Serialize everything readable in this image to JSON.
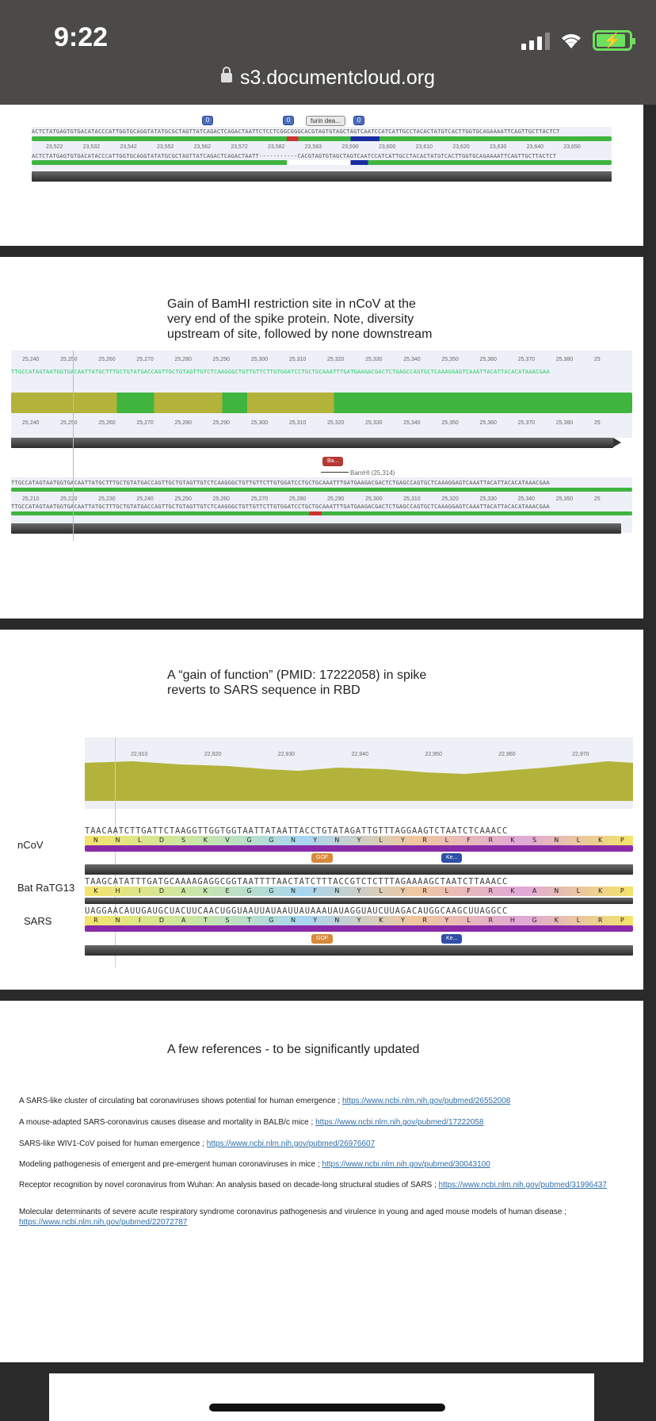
{
  "status_bar": {
    "time": "9:22"
  },
  "browser": {
    "url": "s3.documentcloud.org"
  },
  "slide1": {
    "button_label": "0",
    "furin_label": "furin dea...",
    "ticks": [
      "23,522",
      "23,532",
      "23,542",
      "23,552",
      "23,562",
      "23,572",
      "23,582",
      "23,583",
      "23,590",
      "23,600",
      "23,610",
      "23,620",
      "23,630",
      "23,640",
      "23,650"
    ],
    "seq_top": "ACTCTATGAGTGTGACATACCCATTGGTGCAGGTATATGCGCTAGTTATCAGACTCAGACTAATTCTCCTCGGCGGGCACGTAGTGTAGCTAGTCAATCCATCATTGCCTACACTATGTCACTTGGTGCAGAAAATTCAGTTGCTTACTCT",
    "seq_bottom": "ACTCTATGAGTGTGACATACCCATTGGTGCAGGTATATGCGCTAGTTATCAGACTCAGACTAATT-----------CACGTAGTGTAGCTAGTCAATCCATCATTGCCTACACTATGTCACTTGGTGCAGAAAATTCAGTTGCTTACTCT"
  },
  "slide2": {
    "title_lines": [
      "Gain of BamHI restriction site in nCoV at the",
      "very end of the spike protein. Note, diversity",
      "upstream of site, followed by none downstream"
    ],
    "ticks_top": [
      "25,240",
      "25,250",
      "25,260",
      "25,270",
      "25,280",
      "25,290",
      "25,300",
      "25,310",
      "25,320",
      "25,330",
      "25,340",
      "25,350",
      "25,360",
      "25,370",
      "25,380",
      "25"
    ],
    "ticks_bottom": [
      "25,210",
      "25,220",
      "25,230",
      "25,240",
      "25,250",
      "25,260",
      "25,270",
      "25,280",
      "25,290",
      "25,300",
      "25,310",
      "25,320",
      "25,330",
      "25,340",
      "25,350",
      "25"
    ],
    "site_tag": "Ba...",
    "site_label": "BamHI (25,314)",
    "seq_a": "TTGCCATAGTAATGGTGACAATTATGCTTTGCTGTATGACCAGTTGCTGTAGTTGTCTCAAGGGCTGTTGTTCTTGTGGATCCTGCTGCAAATTTGATGAAGACGACTCTGAGCCAGTGCTCAAAGGAGTCAAATTACATTACACATAAACGAA",
    "seq_b": "TTGCCATAGTAATGGTGACAATTATGCTTTGCTGTATGACCAGTTGCTGTAGTTGTCTCAAGGGCTGTTGTTCTTGTGGATCCTGCTGCAAATTTGATGAAGACGACTCTGAGCCAGTGCTCAAAGGAGTCAAATTACATTACACATAAACGAA"
  },
  "slide3": {
    "title_lines": [
      "A “gain of function” (PMID: 17222058) in spike",
      "reverts to SARS sequence in RBD"
    ],
    "ticks": [
      "22,910",
      "22,920",
      "22,930",
      "22,940",
      "22,950",
      "22,960",
      "22,970"
    ],
    "rows": [
      {
        "label": "nCoV",
        "nt": "TAACAATCTTGATTCTAAGGTTGGTGGTAATTATAATTACCTGTATAGATTGTTTAGGAAGTCTAATCTCAAACC",
        "aa": [
          "N",
          "N",
          "L",
          "D",
          "S",
          "K",
          "V",
          "G",
          "G",
          "N",
          "Y",
          "N",
          "Y",
          "L",
          "Y",
          "R",
          "L",
          "F",
          "R",
          "K",
          "S",
          "N",
          "L",
          "K",
          "P"
        ]
      },
      {
        "label": "Bat RaTG13",
        "nt": "TAAGCATATTTGATGCAAAAGAGGCGGTAATTTTAACTATCTTTACCGTCTCTTTAGAAAAGCTAATCTTAAACC",
        "aa": [
          "K",
          "H",
          "I",
          "D",
          "A",
          "K",
          "E",
          "G",
          "G",
          "N",
          "F",
          "N",
          "Y",
          "L",
          "Y",
          "R",
          "L",
          "F",
          "R",
          "K",
          "A",
          "N",
          "L",
          "K",
          "P"
        ]
      },
      {
        "label": "SARS",
        "nt": "UAGGAACAUUGAUGCUACUUCAACUGGUAAUUAUAAUUAUAAAUAUAGGUAUCUUAGACAUGGCAAGCUUAGGCC",
        "aa": [
          "R",
          "N",
          "I",
          "D",
          "A",
          "T",
          "S",
          "T",
          "G",
          "N",
          "Y",
          "N",
          "Y",
          "K",
          "Y",
          "R",
          "Y",
          "L",
          "R",
          "H",
          "G",
          "K",
          "L",
          "R",
          "P"
        ]
      }
    ],
    "gof_label": "GOF",
    "ke_label": "Ke..."
  },
  "slide4": {
    "title": "A few references - to be significantly updated",
    "refs": [
      {
        "text": "A SARS-like cluster of circulating bat coronaviruses shows potential for human emergence ; ",
        "link": "https://www.ncbi.nlm.nih.gov/pubmed/26552008"
      },
      {
        "text": "A mouse-adapted SARS-coronavirus causes disease and mortality in BALB/c mice ; ",
        "link": "https://www.ncbi.nlm.nih.gov/pubmed/17222058"
      },
      {
        "text": "SARS-like WIV1-CoV poised for human emergence ; ",
        "link": "https://www.ncbi.nlm.nih.gov/pubmed/26976607"
      },
      {
        "text": "Modeling pathogenesis of emergent and pre-emergent human coronaviruses in mice ; ",
        "link": "https://www.ncbi.nlm.nih.gov/pubmed/30043100"
      },
      {
        "text": "Receptor recognition by novel coronavirus from Wuhan: An analysis based on decade-long structural studies of SARS ; ",
        "link": "https://www.ncbi.nlm.nih.gov/pubmed/31996437"
      },
      {
        "text": "Molecular determinants of severe acute respiratory syndrome coronavirus pathogenesis and virulence in young and aged mouse models of human disease ; ",
        "link": "https://www.ncbi.nlm.nih.gov/pubmed/22072787"
      }
    ]
  },
  "colors": {
    "identity_green": "#3fb53f",
    "identity_olive": "#b3b33b",
    "aa_purple": "#8a2aa8",
    "gof_orange": "#d68a3a",
    "ke_blue": "#2f4fa8",
    "ba_red": "#b53a35"
  }
}
